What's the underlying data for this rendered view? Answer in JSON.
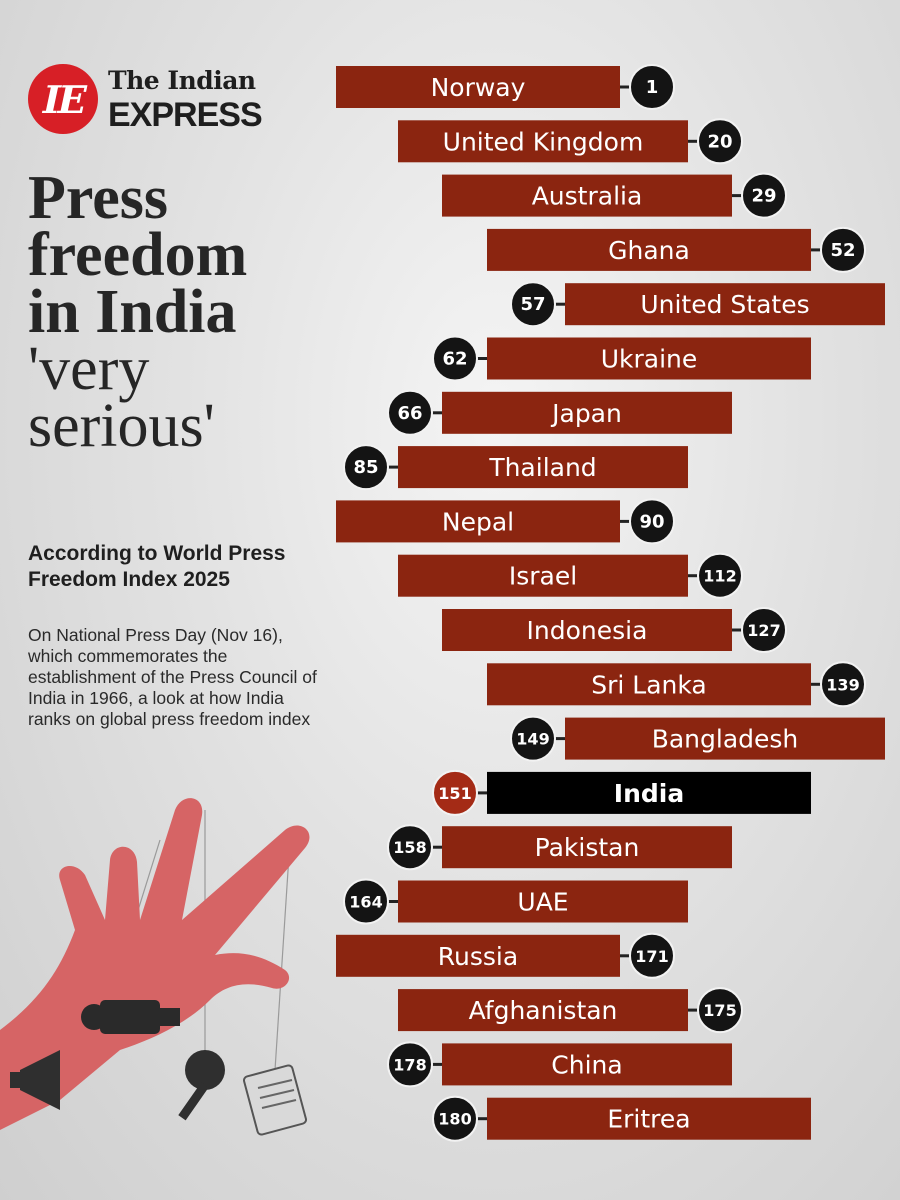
{
  "brand": {
    "mark": "IE",
    "name_line1": "The Indian",
    "name_line2": "EXPRESS",
    "color": "#d71f26"
  },
  "headline": {
    "line1": "Press",
    "line2": "freedom",
    "line3": "in India",
    "line4": "'very",
    "line5": "serious'"
  },
  "subhead": "According to World Press Freedom Index 2025",
  "description": "On National Press Day (Nov 16), which commemorates the establishment of the Press Council of India in 1966, a look at how India ranks on global press freedom index",
  "colors": {
    "bar": "#8b2510",
    "highlight_bar": "#000000",
    "badge": "#141414",
    "highlight_badge": "#a42b16",
    "illustration": "#d66465"
  },
  "chart_data": {
    "type": "bar",
    "highlight": "India",
    "categories": [
      "Norway",
      "United Kingdom",
      "Australia",
      "Ghana",
      "United States",
      "Ukraine",
      "Japan",
      "Thailand",
      "Nepal",
      "Israel",
      "Indonesia",
      "Sri Lanka",
      "Bangladesh",
      "India",
      "Pakistan",
      "UAE",
      "Russia",
      "Afghanistan",
      "China",
      "Eritrea"
    ],
    "values": [
      1,
      20,
      29,
      52,
      57,
      62,
      66,
      85,
      90,
      112,
      127,
      139,
      149,
      151,
      158,
      164,
      171,
      175,
      178,
      180
    ],
    "labels": [
      "1",
      "20",
      "29",
      "52",
      "57",
      "62",
      "66",
      "85",
      "90",
      "112",
      "127",
      "139",
      "149",
      "151",
      "158",
      "164",
      "171",
      "175",
      "178",
      "180"
    ]
  }
}
